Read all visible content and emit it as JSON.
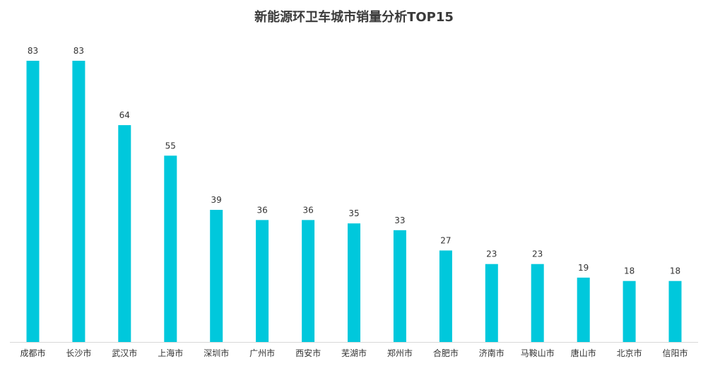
{
  "chart_data": {
    "type": "bar",
    "title": "新能源环卫车城市销量分析TOP15",
    "xlabel": "",
    "ylabel": "",
    "categories": [
      "成都市",
      "长沙市",
      "武汉市",
      "上海市",
      "深圳市",
      "广州市",
      "西安市",
      "芜湖市",
      "郑州市",
      "合肥市",
      "济南市",
      "马鞍山市",
      "唐山市",
      "北京市",
      "信阳市"
    ],
    "values": [
      83,
      83,
      64,
      55,
      39,
      36,
      36,
      35,
      33,
      27,
      23,
      23,
      19,
      18,
      18
    ],
    "ylim": [
      0,
      83
    ],
    "grid": false,
    "legend": "none",
    "bar_color": "#00c8dc",
    "axis_color": "#d9d9d9"
  }
}
